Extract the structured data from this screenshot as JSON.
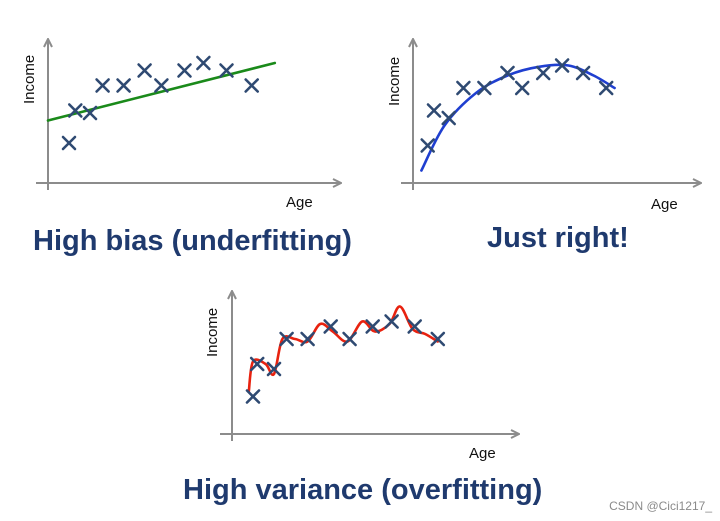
{
  "chart_data": [
    {
      "type": "scatter",
      "id": "underfit",
      "title": "High bias (underfitting)",
      "xlabel": "Age",
      "ylabel": "Income",
      "xlim": [
        0,
        12
      ],
      "ylim": [
        0,
        5
      ],
      "fit": "linear",
      "fit_color": "#1a8a1a",
      "points": [
        {
          "x": 1.0,
          "y": 1.6
        },
        {
          "x": 1.3,
          "y": 2.9
        },
        {
          "x": 2.0,
          "y": 2.8
        },
        {
          "x": 2.6,
          "y": 3.9
        },
        {
          "x": 3.6,
          "y": 3.9
        },
        {
          "x": 4.6,
          "y": 4.5
        },
        {
          "x": 5.4,
          "y": 3.9
        },
        {
          "x": 6.5,
          "y": 4.5
        },
        {
          "x": 7.4,
          "y": 4.8
        },
        {
          "x": 8.5,
          "y": 4.5
        },
        {
          "x": 9.7,
          "y": 3.9
        }
      ],
      "fit_points": [
        {
          "x": 0.0,
          "y": 2.5
        },
        {
          "x": 10.8,
          "y": 4.8
        }
      ]
    },
    {
      "type": "scatter",
      "id": "justright",
      "title": "Just right!",
      "xlabel": "Age",
      "ylabel": "Income",
      "xlim": [
        0,
        12
      ],
      "ylim": [
        0,
        5
      ],
      "fit": "quadratic",
      "fit_color": "#1f3fd0",
      "points": [
        {
          "x": 0.7,
          "y": 1.5
        },
        {
          "x": 1.0,
          "y": 2.9
        },
        {
          "x": 1.7,
          "y": 2.6
        },
        {
          "x": 2.4,
          "y": 3.8
        },
        {
          "x": 3.4,
          "y": 3.8
        },
        {
          "x": 4.5,
          "y": 4.4
        },
        {
          "x": 5.2,
          "y": 3.8
        },
        {
          "x": 6.2,
          "y": 4.4
        },
        {
          "x": 7.1,
          "y": 4.7
        },
        {
          "x": 8.1,
          "y": 4.4
        },
        {
          "x": 9.2,
          "y": 3.8
        }
      ],
      "fit_points": [
        {
          "x": 0.4,
          "y": 0.5
        },
        {
          "x": 1.5,
          "y": 2.3
        },
        {
          "x": 3.0,
          "y": 3.6
        },
        {
          "x": 4.5,
          "y": 4.3
        },
        {
          "x": 6.0,
          "y": 4.65
        },
        {
          "x": 7.4,
          "y": 4.7
        },
        {
          "x": 8.6,
          "y": 4.3
        },
        {
          "x": 9.6,
          "y": 3.8
        }
      ]
    },
    {
      "type": "scatter",
      "id": "overfit",
      "title": "High variance (overfitting)",
      "xlabel": "Age",
      "ylabel": "Income",
      "xlim": [
        0,
        12
      ],
      "ylim": [
        0,
        5
      ],
      "fit": "high-degree polynomial",
      "fit_color": "#e8220f",
      "points": [
        {
          "x": 1.0,
          "y": 1.5
        },
        {
          "x": 1.2,
          "y": 2.8
        },
        {
          "x": 2.0,
          "y": 2.6
        },
        {
          "x": 2.6,
          "y": 3.8
        },
        {
          "x": 3.6,
          "y": 3.8
        },
        {
          "x": 4.7,
          "y": 4.3
        },
        {
          "x": 5.6,
          "y": 3.8
        },
        {
          "x": 6.7,
          "y": 4.3
        },
        {
          "x": 7.6,
          "y": 4.5
        },
        {
          "x": 8.7,
          "y": 4.3
        },
        {
          "x": 9.8,
          "y": 3.8
        }
      ],
      "fit_points": [
        {
          "x": 0.8,
          "y": 1.7
        },
        {
          "x": 1.0,
          "y": 2.9
        },
        {
          "x": 1.6,
          "y": 2.8
        },
        {
          "x": 2.0,
          "y": 2.4
        },
        {
          "x": 2.4,
          "y": 3.8
        },
        {
          "x": 3.0,
          "y": 3.8
        },
        {
          "x": 3.6,
          "y": 3.7
        },
        {
          "x": 4.2,
          "y": 4.4
        },
        {
          "x": 4.8,
          "y": 4.1
        },
        {
          "x": 5.5,
          "y": 3.7
        },
        {
          "x": 6.2,
          "y": 4.5
        },
        {
          "x": 6.8,
          "y": 4.1
        },
        {
          "x": 7.5,
          "y": 4.4
        },
        {
          "x": 8.0,
          "y": 5.1
        },
        {
          "x": 8.6,
          "y": 4.2
        },
        {
          "x": 9.2,
          "y": 4.0
        },
        {
          "x": 9.8,
          "y": 3.7
        }
      ]
    }
  ],
  "styles": {
    "marker_color": "#2f4a72",
    "axis_color": "#8c8c8c",
    "caption_color": "#1f3a6e"
  },
  "watermark": "CSDN @Cici1217_"
}
